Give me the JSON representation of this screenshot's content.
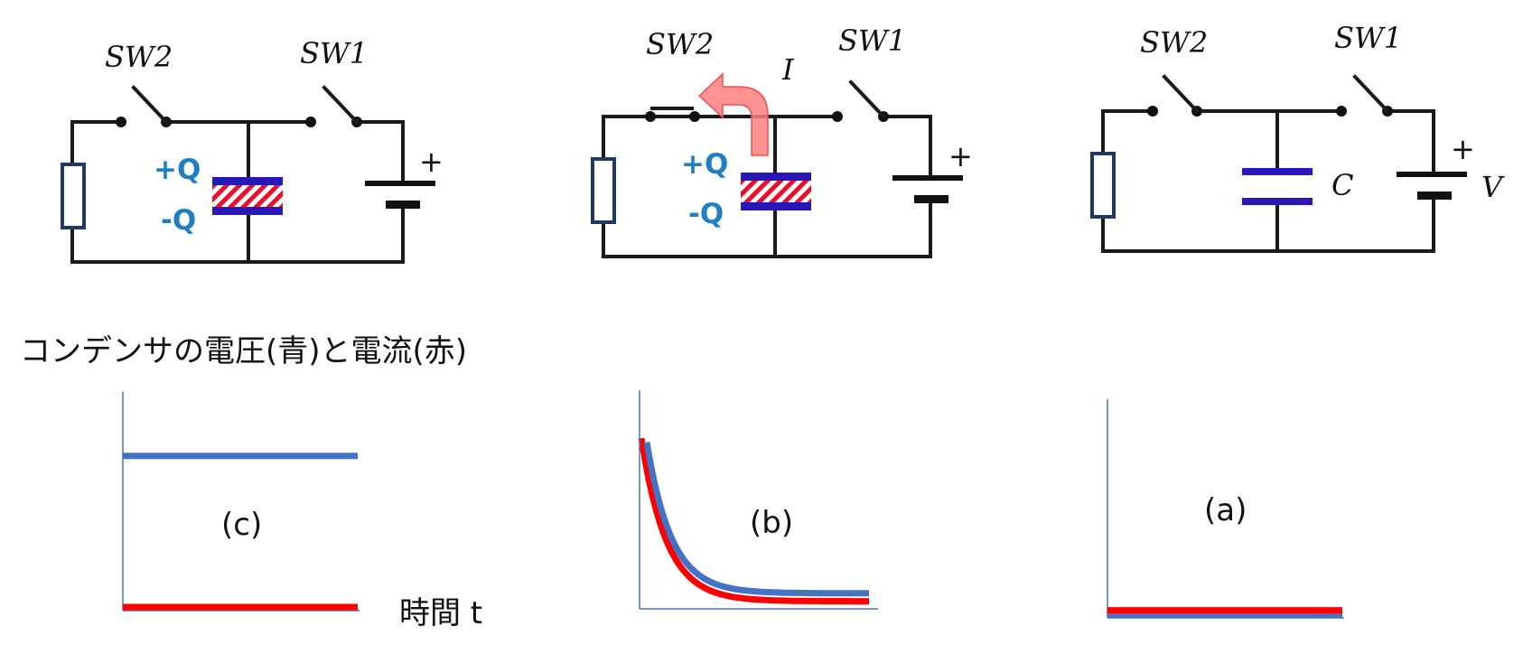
{
  "circuits": [
    {
      "id": "c",
      "sw2_label": "SW2",
      "sw1_label": "SW1",
      "plus_charge": "+Q",
      "minus_charge": "-Q",
      "battery_plus": "+"
    },
    {
      "id": "b",
      "sw2_label": "SW2",
      "sw1_label": "SW1",
      "current_label": "I",
      "plus_charge": "+Q",
      "minus_charge": "-Q",
      "battery_plus": "+"
    },
    {
      "id": "a",
      "sw2_label": "SW2",
      "sw1_label": "SW1",
      "capacitor_label": "C",
      "battery_plus": "+",
      "voltage_label": "V"
    }
  ],
  "section_title": "コンデンサの電圧(青)と電流(赤)",
  "colors": {
    "voltage": "#4472c4",
    "current": "#ff0000",
    "charge_text": "#1f7fc0",
    "capacitor_plate": "#2a17b8",
    "arrow": "#ff7f7f"
  },
  "chart_data": [
    {
      "type": "line",
      "panel_label": "(c)",
      "xlabel": "時間 t",
      "series": [
        {
          "color": "blue",
          "shape": "constant",
          "level": 0.76
        },
        {
          "color": "red",
          "shape": "constant",
          "level": 0.0
        }
      ]
    },
    {
      "type": "line",
      "panel_label": "(b)",
      "series": [
        {
          "color": "blue",
          "shape": "exponential-decay",
          "start": 0.82,
          "end": 0.06
        },
        {
          "color": "red",
          "shape": "exponential-decay",
          "start": 0.84,
          "end": 0.02
        }
      ]
    },
    {
      "type": "line",
      "panel_label": "(a)",
      "series": [
        {
          "color": "blue",
          "shape": "constant",
          "level": 0.0
        },
        {
          "color": "red",
          "shape": "constant",
          "level": 0.02
        }
      ]
    }
  ]
}
